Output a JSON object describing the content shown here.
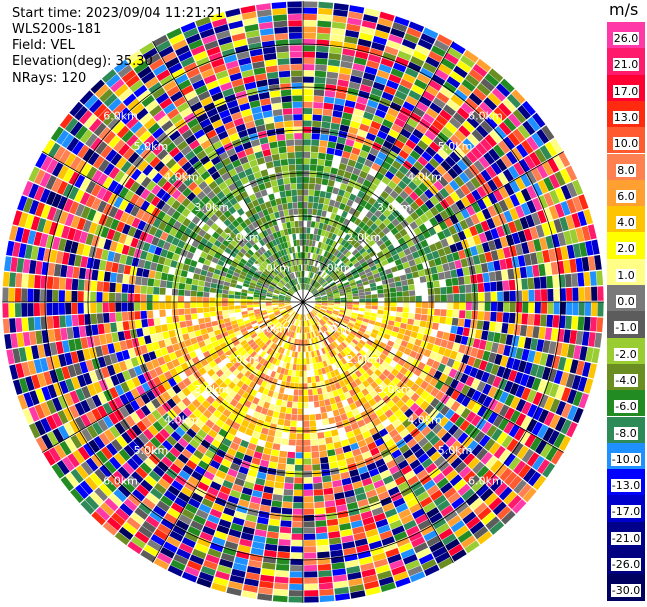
{
  "header": {
    "start_time": "Start time: 2023/09/04 11:21:21",
    "instrument": "WLS200s-181",
    "field": "Field: VEL",
    "elevation": "Elevation(deg): 35.30",
    "nrays": "NRays: 120"
  },
  "colorbar": {
    "unit": "m/s",
    "ticks": [
      "26.0",
      "21.0",
      "17.0",
      "13.0",
      "10.0",
      "8.0",
      "6.0",
      "4.0",
      "2.0",
      "1.0",
      "0.0",
      "-1.0",
      "-2.0",
      "-4.0",
      "-6.0",
      "-8.0",
      "-10.0",
      "-13.0",
      "-17.0",
      "-21.0",
      "-26.0",
      "-30.0"
    ],
    "colors": [
      "#ff3aa8",
      "#ff1a6b",
      "#ff0033",
      "#ff2a10",
      "#ff5a30",
      "#ff8050",
      "#ffa030",
      "#ffc400",
      "#ffff00",
      "#ffff88",
      "#7a7a7a",
      "#5c5c5c",
      "#9acd32",
      "#6b8e23",
      "#228b22",
      "#2e8b57",
      "#1e90ff",
      "#0000ff",
      "#0000cd",
      "#00008b",
      "#000080",
      "#000060"
    ]
  },
  "chart_data": {
    "type": "heatmap",
    "projection": "polar PPI",
    "field": "VEL",
    "unit": "m/s",
    "n_rays": 120,
    "range_rings_km": [
      1.0,
      2.0,
      3.0,
      4.0,
      5.0,
      6.0
    ],
    "range_ring_labels": [
      "1.0km",
      "2.0km",
      "3.0km",
      "4.0km",
      "5.0km",
      "6.0km"
    ],
    "spokes_deg": [
      0,
      30,
      60,
      90,
      120,
      150,
      180,
      210,
      240,
      270,
      300,
      330
    ],
    "vmin": -30.0,
    "vmax": 26.0,
    "pattern": {
      "inner_north_half": "green (-4 to -8 m/s)",
      "inner_south_half": "yellow/orange (2 to 6 m/s)",
      "outer_ranges": "random noise across full scale"
    }
  }
}
